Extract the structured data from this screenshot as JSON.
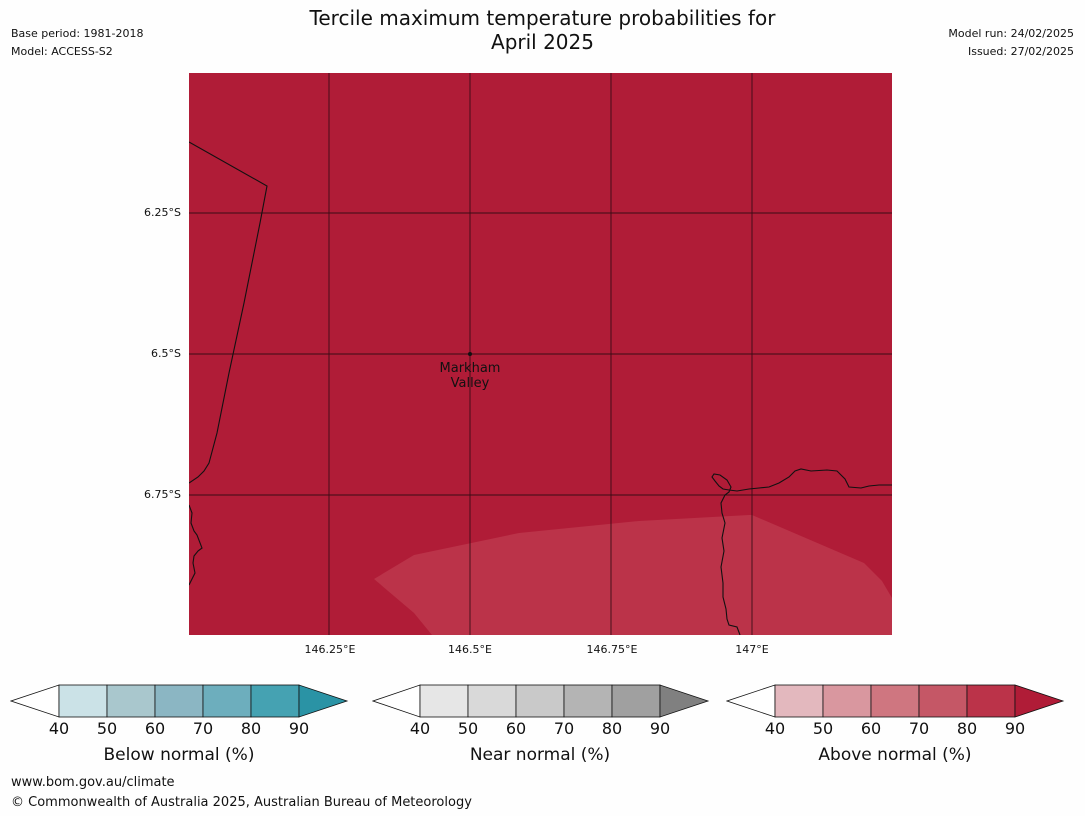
{
  "header": {
    "title_line1": "Tercile maximum temperature probabilities for",
    "title_line2": "April 2025",
    "base_period": "Base period: 1981-2018",
    "model": "Model: ACCESS-S2",
    "model_run": "Model run: 24/02/2025",
    "issued": "Issued: 27/02/2025"
  },
  "map": {
    "lat_labels": [
      "6.25°S",
      "6.5°S",
      "6.75°S"
    ],
    "lon_labels": [
      "146.25°E",
      "146.5°E",
      "146.75°E",
      "147°E"
    ],
    "place": {
      "line1": "Markham",
      "line2": "Valley"
    },
    "fill_colors": {
      "dominant": "#b01c37",
      "lighter": "#bb3349"
    }
  },
  "legends": [
    {
      "title": "Below normal (%)",
      "ticks": [
        "40",
        "50",
        "60",
        "70",
        "80",
        "90"
      ],
      "colors": [
        "#ffffff",
        "#cbe2e7",
        "#a9c7cd",
        "#8bb6c3",
        "#6daebd",
        "#45a2b2",
        "#2a93a5"
      ]
    },
    {
      "title": "Near normal (%)",
      "ticks": [
        "40",
        "50",
        "60",
        "70",
        "80",
        "90"
      ],
      "colors": [
        "#ffffff",
        "#e6e6e6",
        "#d9d9d9",
        "#c9c9c9",
        "#b4b4b4",
        "#a0a0a0",
        "#808080"
      ]
    },
    {
      "title": "Above normal (%)",
      "ticks": [
        "40",
        "50",
        "60",
        "70",
        "80",
        "90"
      ],
      "colors": [
        "#ffffff",
        "#e3b8be",
        "#d9979f",
        "#cf7680",
        "#c55766",
        "#bb3349",
        "#b01c37"
      ]
    }
  ],
  "footer": {
    "url": "www.bom.gov.au/climate",
    "copyright": "© Commonwealth of Australia 2025, Australian Bureau of Meteorology"
  }
}
